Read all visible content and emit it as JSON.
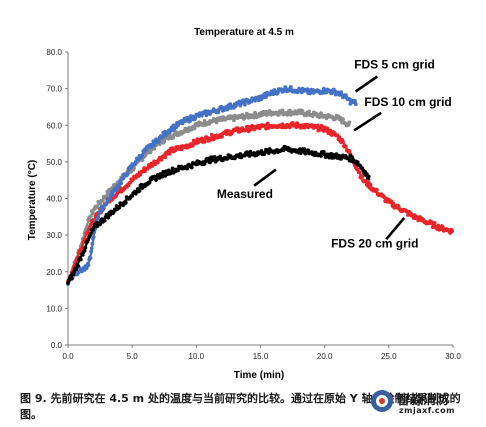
{
  "chart_data": {
    "type": "line",
    "title": "Temperature at 4.5 m",
    "xlabel": "Time (min)",
    "ylabel": "Temperature (°C)",
    "xlim": [
      0,
      30
    ],
    "ylim": [
      0,
      80
    ],
    "xticks": [
      "0.0",
      "5.0",
      "10.0",
      "15.0",
      "20.0",
      "25.0",
      "30.0"
    ],
    "yticks": [
      "0.0",
      "10.0",
      "20.0",
      "30.0",
      "40.0",
      "50.0",
      "60.0",
      "70.0",
      "80.0"
    ],
    "grid": false,
    "series": [
      {
        "name": "FDS 5 cm grid",
        "color": "#4472c4",
        "x": [
          0,
          0.5,
          1,
          1.5,
          1.8,
          2.1,
          2.4,
          3,
          4,
          5,
          6,
          7,
          8,
          9,
          10,
          11,
          12,
          13,
          14,
          15,
          16,
          17,
          18,
          19,
          20,
          21,
          21.5,
          22,
          22.5
        ],
        "y": [
          17,
          19.5,
          20.5,
          21,
          25,
          32,
          36,
          39,
          44,
          49,
          53,
          56,
          59,
          61,
          62.5,
          63.5,
          64.5,
          65.5,
          66.5,
          67.5,
          69,
          70,
          69.5,
          69,
          69.5,
          69,
          68,
          66.5,
          66
        ]
      },
      {
        "name": "FDS 10 cm grid",
        "color": "#8c8c8c",
        "x": [
          0,
          0.5,
          1,
          1.5,
          2,
          3,
          4,
          5,
          6,
          7,
          8,
          9,
          10,
          11,
          12,
          13,
          14,
          15,
          16,
          17,
          18,
          19,
          20,
          21,
          21.5,
          22
        ],
        "y": [
          17,
          22,
          27,
          33,
          37,
          41,
          45,
          48,
          52,
          55,
          57,
          58.5,
          60,
          61,
          61.5,
          62,
          62.5,
          63,
          63.5,
          63.5,
          63.5,
          63,
          62.5,
          62,
          61,
          60
        ]
      },
      {
        "name": "FDS 20 cm grid",
        "color": "#e8252a",
        "x": [
          0,
          0.5,
          1,
          1.5,
          2,
          3,
          4,
          5,
          6,
          7,
          8,
          9,
          10,
          11,
          12,
          13,
          14,
          15,
          16,
          17,
          18,
          19,
          20,
          21,
          21.5,
          22,
          23,
          24,
          25,
          26,
          27,
          28,
          29,
          30
        ],
        "y": [
          17,
          22,
          26,
          31,
          34,
          39,
          42,
          45,
          48,
          50.5,
          53,
          54,
          55.5,
          56.5,
          57.5,
          58.5,
          59,
          59.5,
          60,
          60,
          60,
          59.5,
          59,
          57,
          55,
          52,
          45,
          42,
          39,
          37,
          35,
          33.5,
          32,
          31
        ]
      },
      {
        "name": "Measured",
        "color": "#000000",
        "x": [
          0,
          0.5,
          1,
          1.5,
          2,
          3,
          4,
          5,
          6,
          7,
          8,
          9,
          10,
          11,
          12,
          13,
          14,
          15,
          16,
          17,
          18,
          19,
          20,
          21,
          22,
          22.5,
          23,
          23.5
        ],
        "y": [
          17,
          20,
          24,
          28,
          32,
          35,
          38,
          41,
          44,
          46,
          47.5,
          48.5,
          49.5,
          50.5,
          51,
          51.5,
          52,
          52.5,
          53,
          53.5,
          53,
          52.5,
          52,
          51.5,
          51,
          50,
          48,
          45
        ]
      }
    ],
    "annotations": [
      {
        "text": "FDS 5 cm grid",
        "label_x": 22.3,
        "label_y": 75.5,
        "arrow": [
          [
            24.1,
            73.3
          ],
          [
            22.4,
            69.2
          ]
        ]
      },
      {
        "text": "FDS 10 cm grid",
        "label_x": 23.1,
        "label_y": 65.2,
        "arrow": [
          [
            24.4,
            63.4
          ],
          [
            22.3,
            58.6
          ]
        ]
      },
      {
        "text": "Measured",
        "label_x": 11.6,
        "label_y": 40.1,
        "arrow": [
          [
            14.5,
            43.5
          ],
          [
            16.2,
            47.9
          ]
        ]
      },
      {
        "text": "FDS 20 cm grid",
        "label_x": 20.5,
        "label_y": 26.6,
        "arrow": [
          [
            24.8,
            28.9
          ],
          [
            26.2,
            34.7
          ]
        ]
      }
    ]
  },
  "caption": {
    "label": "图 9.",
    "text": "先前研究在 4.5 m 处的温度与当前研究的比较。通过在原始 Y 轴上绘制结果制成的图。"
  },
  "watermark": {
    "name": "智淼消防",
    "url": "zmjaxf.com"
  }
}
